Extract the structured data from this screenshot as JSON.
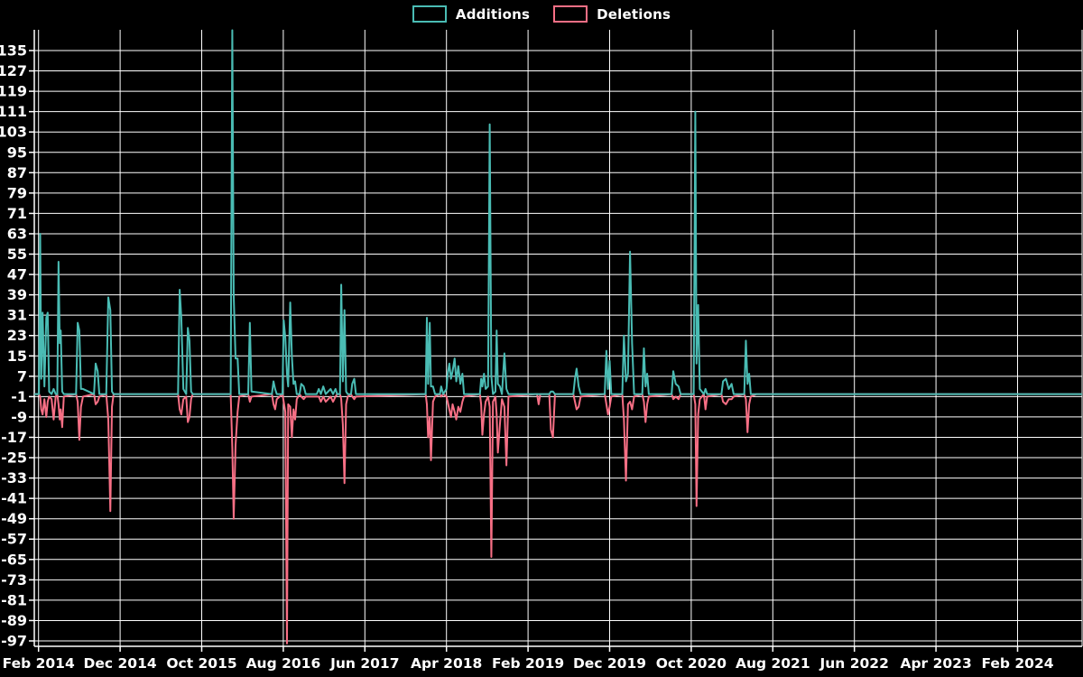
{
  "page": {
    "background": "#000000",
    "grid_color": "#ffffff",
    "text_color": "#ffffff"
  },
  "legend": {
    "items": [
      {
        "label": "Additions",
        "color": "#4abcb4"
      },
      {
        "label": "Deletions",
        "color": "#f76f85"
      }
    ]
  },
  "chart_data": {
    "type": "line",
    "title": "",
    "xlabel": "",
    "ylabel": "",
    "grid": true,
    "legend_position": "top-center",
    "x_axis": {
      "tick_labels": [
        "Feb 2014",
        "Dec 2014",
        "Oct 2015",
        "Aug 2016",
        "Jun 2017",
        "Apr 2018",
        "Feb 2019",
        "Dec 2019",
        "Oct 2020",
        "Aug 2021",
        "Jun 2022",
        "Apr 2023",
        "Feb 2024"
      ],
      "tick_months": [
        0,
        10,
        20,
        30,
        40,
        50,
        60,
        70,
        80,
        90,
        100,
        110,
        120
      ]
    },
    "y_axis": {
      "tick_values": [
        135,
        127,
        119,
        111,
        103,
        95,
        87,
        79,
        71,
        63,
        55,
        47,
        39,
        31,
        23,
        15,
        7,
        -1,
        -9,
        -17,
        -25,
        -33,
        -41,
        -49,
        -57,
        -65,
        -73,
        -81,
        -89,
        -97
      ]
    },
    "xlim_months": [
      -0.52,
      127.9
    ],
    "ylim": [
      -99.2,
      143.3
    ],
    "series": [
      {
        "name": "Additions",
        "color": "#4abcb4"
      },
      {
        "name": "Deletions",
        "color": "#f76f85"
      }
    ],
    "points_format": [
      "month_since_feb2014",
      "additions",
      "deletions"
    ],
    "points": [
      [
        -0.52,
        0,
        0
      ],
      [
        0.05,
        0,
        0
      ],
      [
        0.2,
        63,
        -1
      ],
      [
        0.33,
        6,
        -6
      ],
      [
        0.5,
        32,
        -8
      ],
      [
        0.72,
        3,
        -2
      ],
      [
        0.95,
        30,
        -9
      ],
      [
        1.12,
        32,
        -3
      ],
      [
        1.3,
        1,
        -1
      ],
      [
        1.6,
        0,
        -2
      ],
      [
        1.85,
        2,
        -10
      ],
      [
        2.1,
        0,
        -1
      ],
      [
        2.3,
        0,
        0
      ],
      [
        2.45,
        52,
        -4
      ],
      [
        2.6,
        20,
        -10
      ],
      [
        2.72,
        25,
        -6
      ],
      [
        2.9,
        1,
        -13
      ],
      [
        3.1,
        0,
        -1
      ],
      [
        4.6,
        0,
        0
      ],
      [
        4.8,
        28,
        -3
      ],
      [
        5.0,
        25,
        -18
      ],
      [
        5.2,
        2,
        -5
      ],
      [
        5.45,
        2,
        -1
      ],
      [
        6.8,
        0,
        0
      ],
      [
        7.0,
        12,
        -4
      ],
      [
        7.25,
        9,
        -3
      ],
      [
        7.45,
        0,
        -1
      ],
      [
        8.3,
        0,
        0
      ],
      [
        8.55,
        38,
        -10
      ],
      [
        8.8,
        33,
        -46
      ],
      [
        9.0,
        1,
        -5
      ],
      [
        9.2,
        0,
        0
      ],
      [
        17.1,
        0,
        0
      ],
      [
        17.3,
        41,
        -6
      ],
      [
        17.5,
        30,
        -8
      ],
      [
        17.75,
        2,
        -2
      ],
      [
        18.1,
        0,
        -1
      ],
      [
        18.3,
        26,
        -11
      ],
      [
        18.5,
        21,
        -9
      ],
      [
        18.7,
        1,
        -2
      ],
      [
        18.9,
        0,
        0
      ],
      [
        23.55,
        0,
        0
      ],
      [
        23.75,
        143,
        -21
      ],
      [
        23.92,
        39,
        -49
      ],
      [
        24.15,
        14,
        -20
      ],
      [
        24.4,
        14,
        -7
      ],
      [
        24.6,
        0,
        -1
      ],
      [
        25.7,
        0,
        0
      ],
      [
        25.9,
        28,
        -3
      ],
      [
        26.1,
        1,
        -1
      ],
      [
        28.6,
        0,
        0
      ],
      [
        28.8,
        5,
        -4
      ],
      [
        29.0,
        2,
        -6
      ],
      [
        29.2,
        0,
        -2
      ],
      [
        29.9,
        0,
        0
      ],
      [
        30.05,
        29,
        -3
      ],
      [
        30.25,
        22,
        -7
      ],
      [
        30.45,
        8,
        -98
      ],
      [
        30.6,
        3,
        -4
      ],
      [
        30.85,
        36,
        -5
      ],
      [
        31.05,
        15,
        -17
      ],
      [
        31.25,
        4,
        -6
      ],
      [
        31.45,
        5,
        -10
      ],
      [
        31.65,
        0,
        -2
      ],
      [
        32.0,
        0,
        0
      ],
      [
        32.2,
        4,
        -1
      ],
      [
        32.5,
        3,
        -2
      ],
      [
        32.75,
        0,
        -1
      ],
      [
        34.1,
        0,
        -1
      ],
      [
        34.35,
        2,
        -1
      ],
      [
        34.6,
        0,
        -3
      ],
      [
        34.9,
        3,
        -1
      ],
      [
        35.2,
        0,
        -3
      ],
      [
        35.5,
        1,
        -2
      ],
      [
        35.8,
        2,
        -1
      ],
      [
        36.1,
        0,
        -3
      ],
      [
        36.4,
        2,
        -1
      ],
      [
        36.6,
        0,
        0
      ],
      [
        36.95,
        0,
        0
      ],
      [
        37.1,
        43,
        -2
      ],
      [
        37.3,
        5,
        -12
      ],
      [
        37.5,
        33,
        -35
      ],
      [
        37.7,
        1,
        -4
      ],
      [
        37.9,
        0,
        -1
      ],
      [
        38.3,
        0,
        0
      ],
      [
        38.45,
        4,
        -1
      ],
      [
        38.7,
        6,
        -2
      ],
      [
        38.9,
        0,
        -1
      ],
      [
        47.45,
        0,
        0
      ],
      [
        47.6,
        30,
        -4
      ],
      [
        47.75,
        4,
        -17
      ],
      [
        47.95,
        28,
        -9
      ],
      [
        48.1,
        3,
        -26
      ],
      [
        48.35,
        3,
        -3
      ],
      [
        48.6,
        0,
        -1
      ],
      [
        49.2,
        0,
        0
      ],
      [
        49.35,
        3,
        -1
      ],
      [
        49.6,
        0,
        0
      ],
      [
        50.0,
        2,
        -1
      ],
      [
        50.15,
        8,
        -3
      ],
      [
        50.35,
        12,
        -6
      ],
      [
        50.55,
        6,
        -9
      ],
      [
        50.75,
        9,
        -4
      ],
      [
        51.0,
        14,
        -7
      ],
      [
        51.2,
        5,
        -10
      ],
      [
        51.45,
        11,
        -5
      ],
      [
        51.7,
        4,
        -7
      ],
      [
        51.95,
        8,
        -3
      ],
      [
        52.15,
        0,
        -1
      ],
      [
        54.1,
        0,
        0
      ],
      [
        54.25,
        6,
        -4
      ],
      [
        54.4,
        3,
        -16
      ],
      [
        54.6,
        8,
        -8
      ],
      [
        54.8,
        2,
        -3
      ],
      [
        55.1,
        3,
        -1
      ],
      [
        55.3,
        106,
        -5
      ],
      [
        55.5,
        7,
        -64
      ],
      [
        55.7,
        0,
        -3
      ],
      [
        56.0,
        1,
        -1
      ],
      [
        56.15,
        25,
        -8
      ],
      [
        56.3,
        4,
        -23
      ],
      [
        56.55,
        3,
        -12
      ],
      [
        56.8,
        0,
        -2
      ],
      [
        57.1,
        16,
        -5
      ],
      [
        57.35,
        2,
        -28
      ],
      [
        57.6,
        0,
        -1
      ],
      [
        61.1,
        0,
        0
      ],
      [
        61.3,
        0,
        -4
      ],
      [
        61.5,
        0,
        0
      ],
      [
        62.6,
        0,
        0
      ],
      [
        62.8,
        1,
        -14
      ],
      [
        63.05,
        1,
        -17
      ],
      [
        63.3,
        0,
        0
      ],
      [
        65.55,
        0,
        0
      ],
      [
        65.75,
        6,
        -3
      ],
      [
        65.95,
        10,
        -6
      ],
      [
        66.2,
        3,
        -5
      ],
      [
        66.45,
        0,
        -1
      ],
      [
        69.4,
        0,
        0
      ],
      [
        69.6,
        17,
        -4
      ],
      [
        69.8,
        2,
        -8
      ],
      [
        70.0,
        13,
        -5
      ],
      [
        70.2,
        0,
        -1
      ],
      [
        71.55,
        0,
        0
      ],
      [
        71.75,
        23,
        -10
      ],
      [
        72.0,
        5,
        -34
      ],
      [
        72.25,
        8,
        -4
      ],
      [
        72.5,
        56,
        -3
      ],
      [
        72.75,
        20,
        -6
      ],
      [
        73.0,
        0,
        -1
      ],
      [
        74.0,
        0,
        0
      ],
      [
        74.2,
        18,
        -3
      ],
      [
        74.4,
        3,
        -11
      ],
      [
        74.6,
        8,
        -4
      ],
      [
        74.8,
        0,
        -1
      ],
      [
        77.6,
        0,
        0
      ],
      [
        77.8,
        9,
        -2
      ],
      [
        78.1,
        4,
        -1
      ],
      [
        78.45,
        3,
        -2
      ],
      [
        78.7,
        0,
        0
      ],
      [
        80.3,
        0,
        0
      ],
      [
        80.5,
        111,
        -4
      ],
      [
        80.65,
        12,
        -44
      ],
      [
        80.85,
        35,
        -8
      ],
      [
        81.05,
        2,
        -2
      ],
      [
        81.55,
        0,
        0
      ],
      [
        81.75,
        2,
        -6
      ],
      [
        81.95,
        0,
        -1
      ],
      [
        83.7,
        0,
        0
      ],
      [
        83.9,
        5,
        -3
      ],
      [
        84.25,
        6,
        -4
      ],
      [
        84.6,
        2,
        -2
      ],
      [
        84.95,
        4,
        -2
      ],
      [
        85.2,
        0,
        -1
      ],
      [
        86.5,
        0,
        0
      ],
      [
        86.7,
        21,
        -2
      ],
      [
        86.9,
        4,
        -15
      ],
      [
        87.1,
        8,
        -4
      ],
      [
        87.3,
        0,
        -1
      ],
      [
        88.0,
        0,
        0
      ],
      [
        127.9,
        0,
        0
      ]
    ]
  }
}
